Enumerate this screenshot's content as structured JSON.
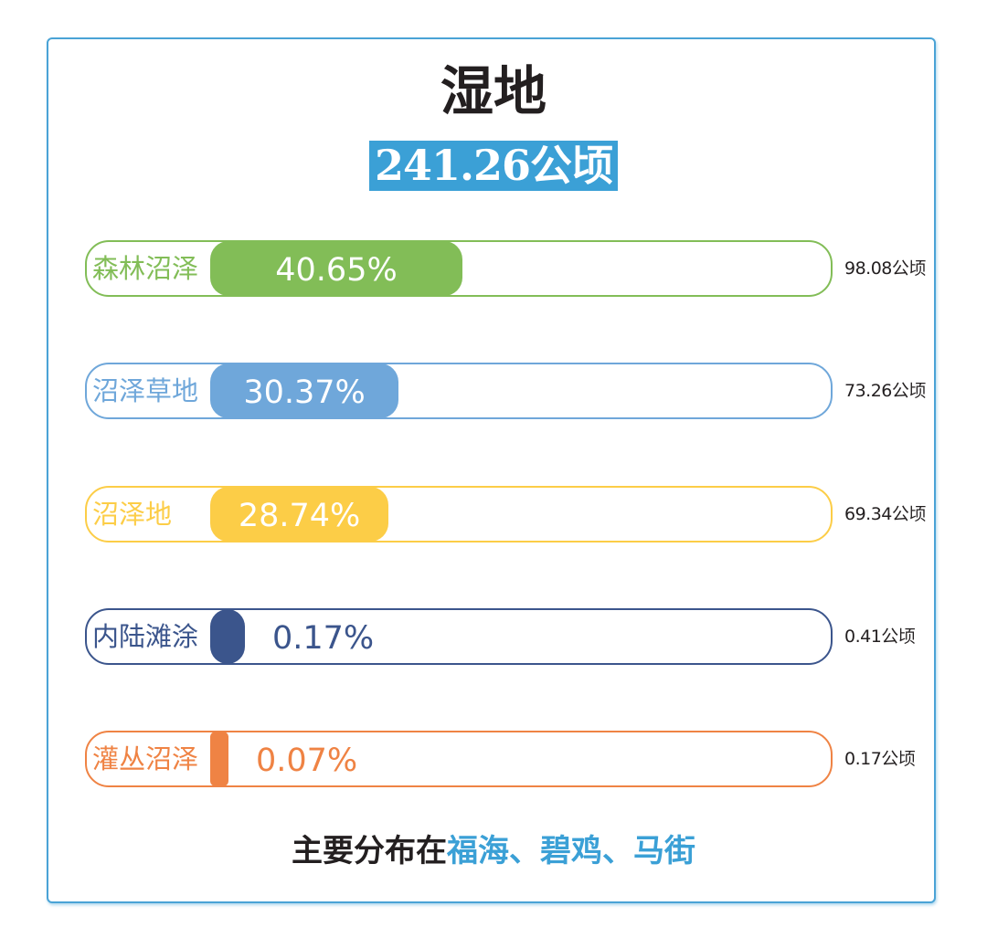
{
  "chart_data": {
    "type": "bar",
    "title": "湿地",
    "subtitle": "241.26公顷",
    "bar_max_percent": 100,
    "categories": [
      "森林沼泽",
      "沼泽草地",
      "沼泽地",
      "内陆滩涂",
      "灌丛沼泽"
    ],
    "percent_labels": [
      "40.65%",
      "30.37%",
      "28.74%",
      "0.17%",
      "0.07%"
    ],
    "values": [
      40.65,
      30.37,
      28.74,
      0.17,
      0.07
    ],
    "area_labels": [
      "98.08公顷",
      "73.26公顷",
      "69.34公顷",
      "0.41公顷",
      "0.17公顷"
    ],
    "colors": [
      "#82bd57",
      "#6fa7da",
      "#fccd47",
      "#3b558c",
      "#ef8344"
    ],
    "footer": {
      "prefix": "主要分布在",
      "places": "福海、碧鸡、马街"
    }
  }
}
